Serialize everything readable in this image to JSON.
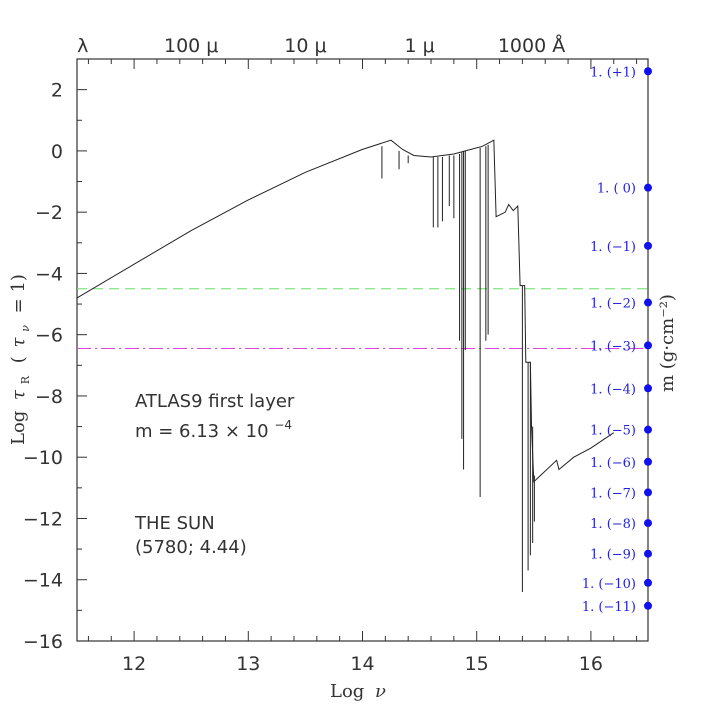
{
  "chart_data": {
    "type": "line",
    "xlabel_base": "Log",
    "xlabel_sym": "ν",
    "ylabel_base": "Log",
    "ylabel_tau": "τ",
    "ylabel_sub": "R",
    "ylabel_paren_open": "(",
    "ylabel_tau2": "τ",
    "ylabel_sub2": "ν",
    "ylabel_paren_rest": "= 1)",
    "right_label": "m (g·cm⁻²)",
    "xlim": [
      11.5,
      16.5
    ],
    "ylim": [
      -16,
      3
    ],
    "x_ticks": [
      12,
      13,
      14,
      15,
      16
    ],
    "x_tick_labels": [
      "12",
      "13",
      "14",
      "15",
      "16"
    ],
    "y_ticks": [
      2,
      0,
      -2,
      -4,
      -6,
      -8,
      -10,
      -12,
      -14,
      -16
    ],
    "y_tick_labels": [
      "2",
      "0",
      "−2",
      "−4",
      "−6",
      "−8",
      "−10",
      "−12",
      "−14",
      "−16"
    ],
    "top_axis_labels": [
      {
        "text": "λ",
        "x": 11.55
      },
      {
        "text": "100 μ",
        "x": 12.5
      },
      {
        "text": "10 μ",
        "x": 13.5
      },
      {
        "text": "1 μ",
        "x": 14.5
      },
      {
        "text": "1000 Å",
        "x": 15.48
      }
    ],
    "annotations": {
      "atlas_line1": "ATLAS9 first layer",
      "atlas_line2": "m  =  6.13   × 10",
      "atlas_exp": "−4",
      "sun_line1": "THE SUN",
      "sun_line2": "(5780; 4.44)"
    },
    "horizontal_lines": [
      {
        "name": "green-dashed",
        "y": -4.5,
        "color": "#66dd66"
      },
      {
        "name": "magenta-dashdot",
        "y": -6.45,
        "color": "#dd44dd"
      }
    ],
    "m_scale": [
      {
        "label": "1. (+1)",
        "y": 2.6
      },
      {
        "label": "1. ( 0)",
        "y": -1.2
      },
      {
        "label": "1. (−1)",
        "y": -3.1
      },
      {
        "label": "1. (−2)",
        "y": -4.95
      },
      {
        "label": "1. (−3)",
        "y": -6.35
      },
      {
        "label": "1. (−4)",
        "y": -7.75
      },
      {
        "label": "1. (−5)",
        "y": -9.1
      },
      {
        "label": "1. (−6)",
        "y": -10.15
      },
      {
        "label": "1. (−7)",
        "y": -11.15
      },
      {
        "label": "1. (−8)",
        "y": -12.15
      },
      {
        "label": "1. (−9)",
        "y": -13.15
      },
      {
        "label": "1. (−10)",
        "y": -14.1
      },
      {
        "label": "1. (−11)",
        "y": -14.85
      }
    ],
    "series": [
      {
        "points": [
          [
            11.5,
            -4.8
          ],
          [
            12.0,
            -3.7
          ],
          [
            12.5,
            -2.6
          ],
          [
            13.0,
            -1.6
          ],
          [
            13.5,
            -0.7
          ],
          [
            14.0,
            0.05
          ],
          [
            14.25,
            0.35
          ],
          [
            14.35,
            0.05
          ],
          [
            14.45,
            -0.15
          ],
          [
            14.6,
            -0.2
          ],
          [
            14.8,
            -0.1
          ],
          [
            14.95,
            0.05
          ],
          [
            15.05,
            0.15
          ],
          [
            15.15,
            0.35
          ],
          [
            15.17,
            -2.15
          ],
          [
            15.25,
            -2.0
          ],
          [
            15.28,
            -1.75
          ],
          [
            15.32,
            -1.95
          ],
          [
            15.36,
            -1.8
          ],
          [
            15.38,
            -4.4
          ],
          [
            15.42,
            -4.4
          ],
          [
            15.43,
            -6.9
          ],
          [
            15.47,
            -6.9
          ],
          [
            15.48,
            -9.0
          ],
          [
            15.5,
            -10.8
          ],
          [
            15.7,
            -10.1
          ],
          [
            15.72,
            -10.4
          ],
          [
            15.85,
            -10.0
          ],
          [
            16.0,
            -9.7
          ],
          [
            16.2,
            -9.2
          ]
        ],
        "lines": [
          [
            14.17,
            0.15,
            -0.9
          ],
          [
            14.32,
            0.0,
            -0.6
          ],
          [
            14.4,
            -0.15,
            -0.4
          ],
          [
            14.62,
            -0.2,
            -2.5
          ],
          [
            14.66,
            -0.2,
            -2.5
          ],
          [
            14.7,
            -0.2,
            -2.3
          ],
          [
            14.76,
            -0.15,
            -1.8
          ],
          [
            14.8,
            -0.15,
            -2.2
          ],
          [
            14.85,
            -0.1,
            -6.2
          ],
          [
            14.87,
            -0.05,
            -9.4
          ],
          [
            14.885,
            0.0,
            -10.4
          ],
          [
            14.9,
            0.0,
            -6.5
          ],
          [
            15.03,
            0.1,
            -11.3
          ],
          [
            15.08,
            0.15,
            -6.2
          ],
          [
            15.1,
            0.2,
            -6.0
          ],
          [
            15.4,
            -4.4,
            -14.4
          ],
          [
            15.45,
            -6.9,
            -13.7
          ],
          [
            15.47,
            -6.9,
            -13.2
          ],
          [
            15.49,
            -9.0,
            -12.8
          ],
          [
            15.505,
            -10.6,
            -12.1
          ]
        ]
      }
    ]
  }
}
